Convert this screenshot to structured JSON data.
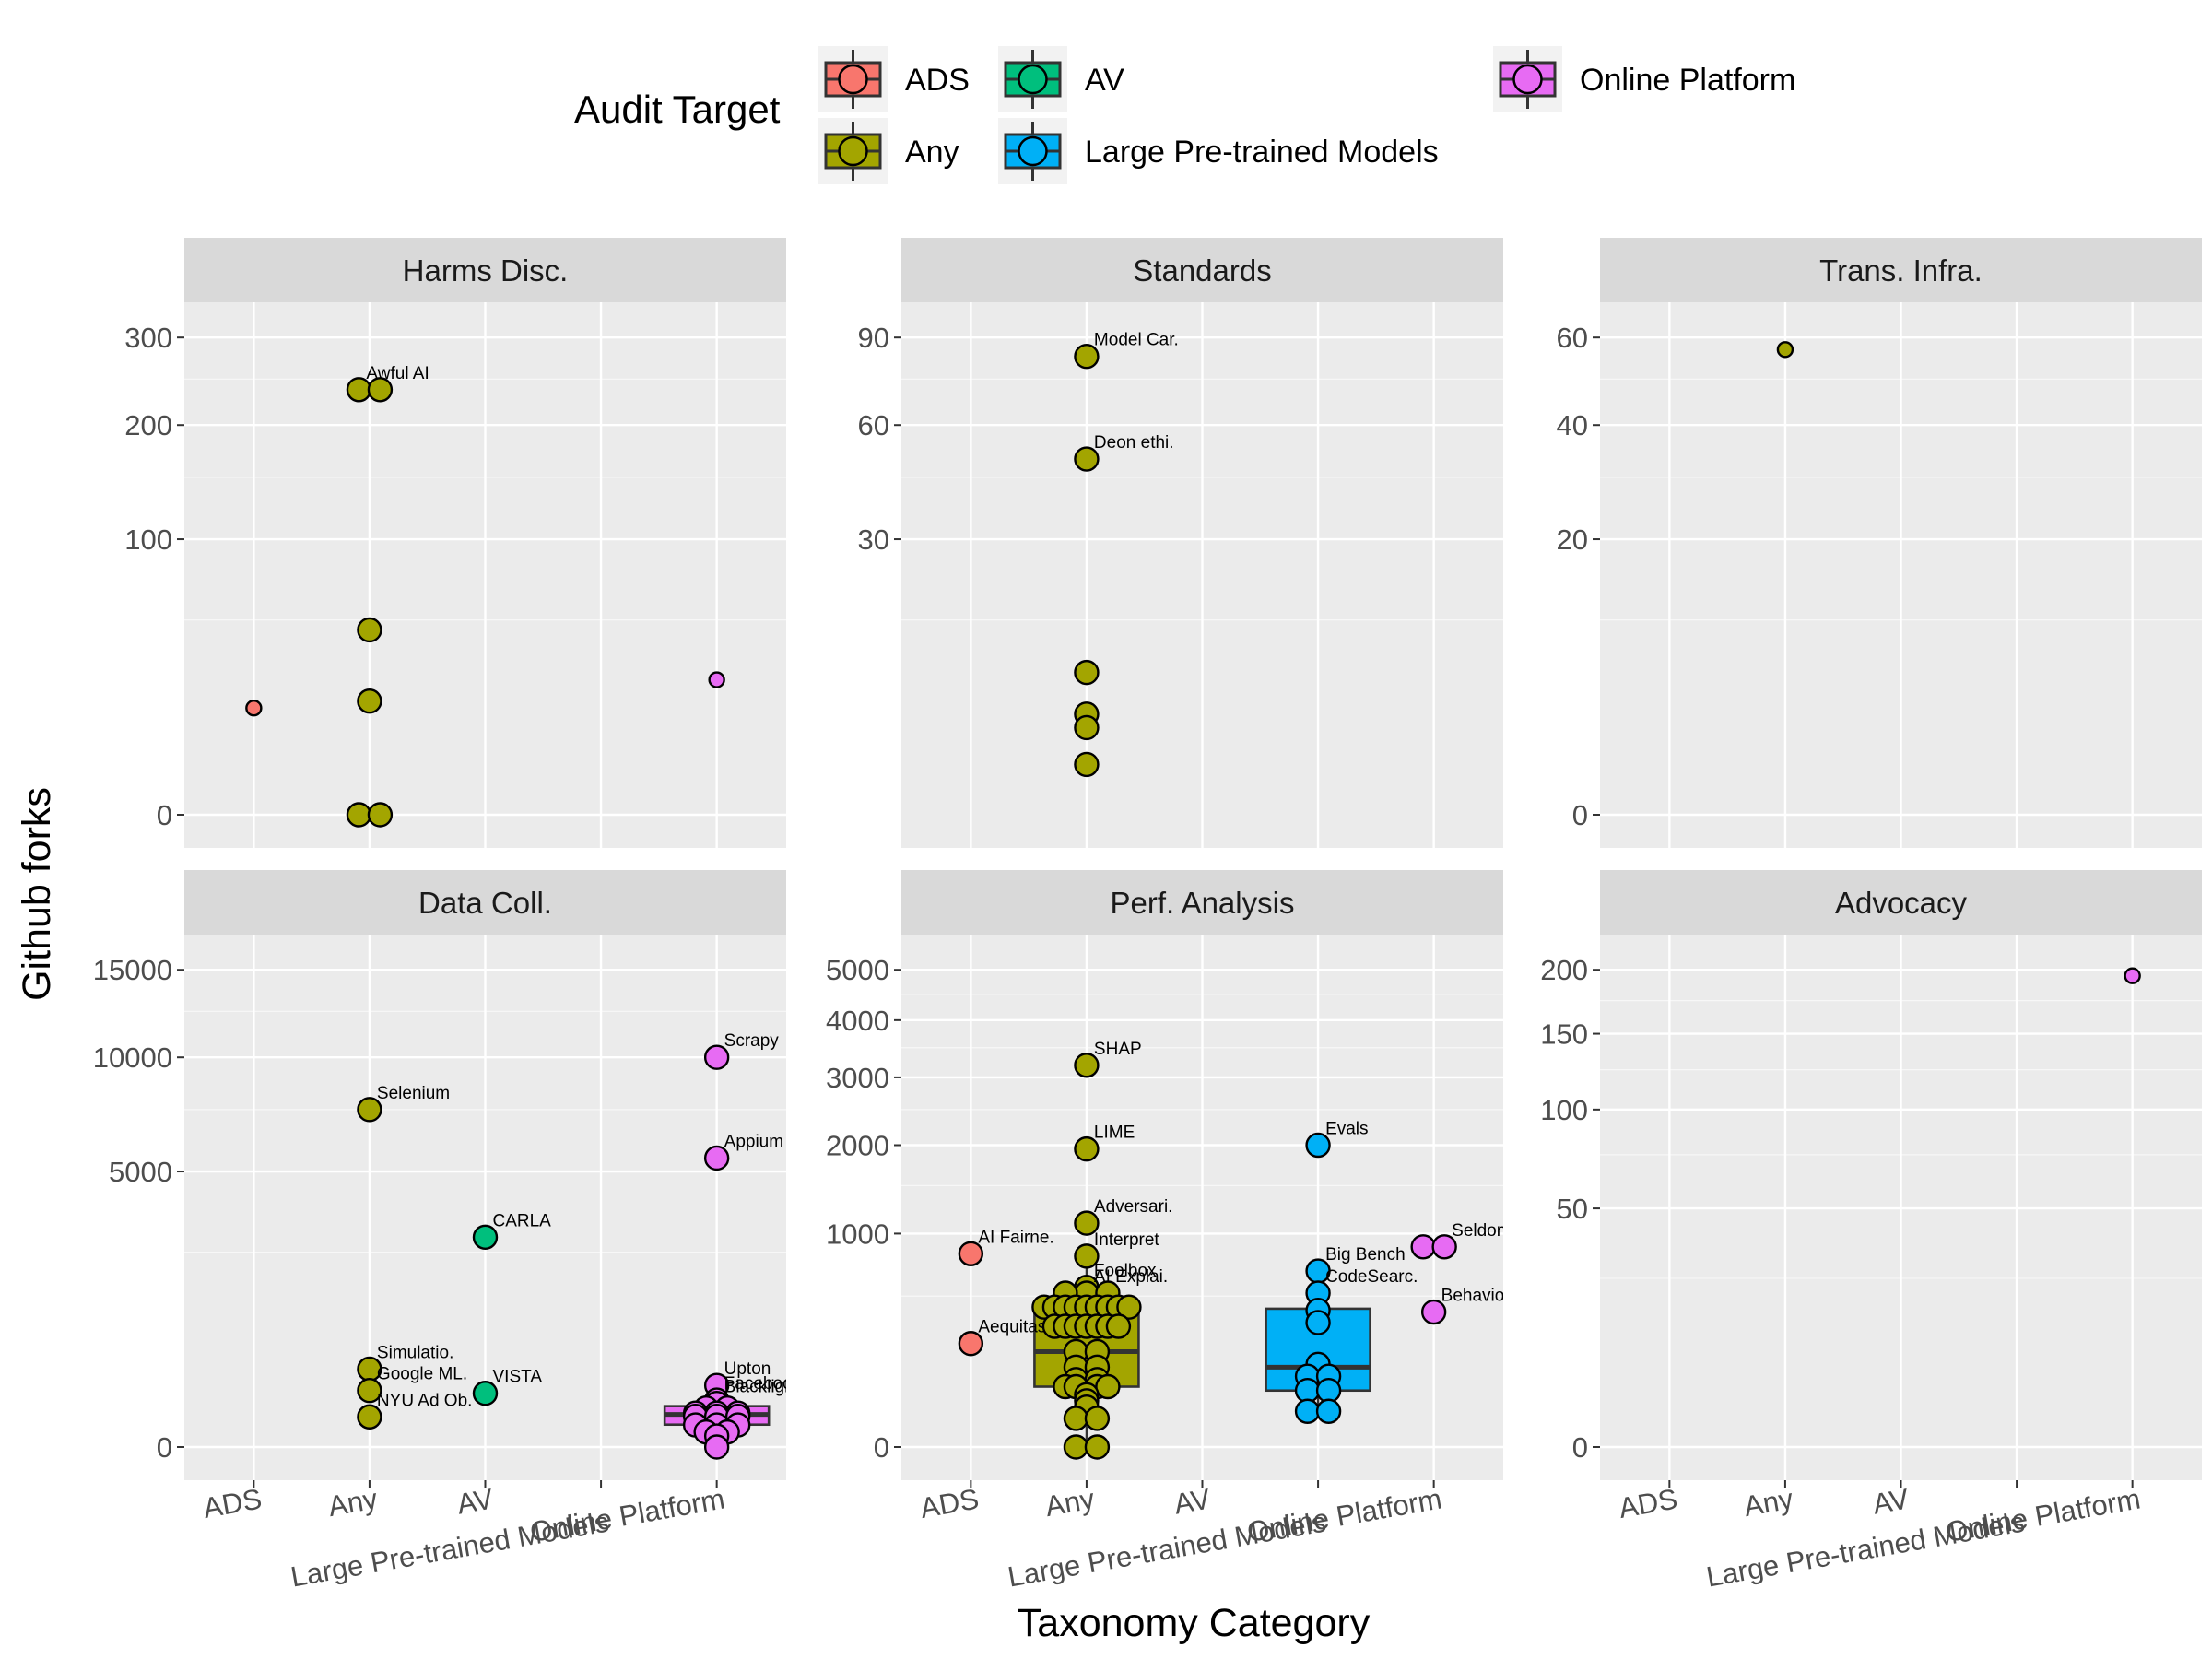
{
  "chart_data": {
    "type": "box-dotplot",
    "xlabel": "Taxonomy Category",
    "ylabel": "Github forks",
    "categories": [
      "ADS",
      "Any",
      "AV",
      "Large Pre-trained Models",
      "Online Platform"
    ],
    "legend": {
      "title": "Audit Target",
      "placement": "top",
      "entries": [
        {
          "name": "ADS",
          "color": "#F8766D"
        },
        {
          "name": "Any",
          "color": "#A3A500"
        },
        {
          "name": "AV",
          "color": "#00BF7D"
        },
        {
          "name": "Large Pre-trained Models",
          "color": "#00B0F6"
        },
        {
          "name": "Online Platform",
          "color": "#E76BF3"
        }
      ]
    },
    "panels": [
      {
        "title": "Harms Disc.",
        "y_ticks": [
          0,
          100,
          200,
          300
        ],
        "points": [
          {
            "cat": "ADS",
            "y": 15,
            "small": true
          },
          {
            "cat": "Any",
            "y": 238,
            "dx": -1,
            "label": "Awful AI"
          },
          {
            "cat": "Any",
            "y": 238,
            "dx": 1
          },
          {
            "cat": "Any",
            "y": 45
          },
          {
            "cat": "Any",
            "y": 17
          },
          {
            "cat": "Any",
            "y": 0,
            "dx": -1
          },
          {
            "cat": "Any",
            "y": 0,
            "dx": 1
          },
          {
            "cat": "Online Platform",
            "y": 24,
            "small": true
          }
        ]
      },
      {
        "title": "Standards",
        "y_ticks": [
          30,
          60,
          90
        ],
        "points": [
          {
            "cat": "Any",
            "y": 83,
            "label": "Model Car."
          },
          {
            "cat": "Any",
            "y": 50,
            "label": "Deon ethi."
          },
          {
            "cat": "Any",
            "y": 8
          },
          {
            "cat": "Any",
            "y": 4
          },
          {
            "cat": "Any",
            "y": 3
          },
          {
            "cat": "Any",
            "y": 1
          }
        ]
      },
      {
        "title": "Trans. Infra.",
        "y_ticks": [
          0,
          20,
          40,
          60
        ],
        "points": [
          {
            "cat": "Any",
            "y": 57,
            "small": true
          }
        ]
      },
      {
        "title": "Data Coll.",
        "y_ticks": [
          0,
          5000,
          10000,
          15000
        ],
        "points": [
          {
            "cat": "Any",
            "y": 7500,
            "label": "Selenium"
          },
          {
            "cat": "Any",
            "y": 400,
            "label": "Simulatio."
          },
          {
            "cat": "Any",
            "y": 210,
            "label": "Google ML."
          },
          {
            "cat": "Any",
            "y": 60,
            "label": "NYU Ad Ob."
          },
          {
            "cat": "AV",
            "y": 2900,
            "label": "CARLA"
          },
          {
            "cat": "AV",
            "y": 190,
            "label": "VISTA"
          },
          {
            "cat": "Online Platform",
            "y": 10000,
            "label": "Scrapy"
          },
          {
            "cat": "Online Platform",
            "y": 5500,
            "label": "Appium"
          },
          {
            "cat": "Online Platform",
            "y": 250,
            "label": "Upton"
          },
          {
            "cat": "Online Platform",
            "y": 145,
            "label": "Facebook"
          },
          {
            "cat": "Online Platform",
            "y": 125,
            "label": "Blacklight"
          },
          {
            "cat": "Online Platform",
            "y": 100,
            "dx": -1
          },
          {
            "cat": "Online Platform",
            "y": 100,
            "dx": 1
          },
          {
            "cat": "Online Platform",
            "y": 76,
            "dx": -2
          },
          {
            "cat": "Online Platform",
            "y": 76
          },
          {
            "cat": "Online Platform",
            "y": 76,
            "dx": 2
          },
          {
            "cat": "Online Platform",
            "y": 62,
            "dx": -2
          },
          {
            "cat": "Online Platform",
            "y": 62
          },
          {
            "cat": "Online Platform",
            "y": 62,
            "dx": 2
          },
          {
            "cat": "Online Platform",
            "y": 32,
            "dx": -2
          },
          {
            "cat": "Online Platform",
            "y": 32
          },
          {
            "cat": "Online Platform",
            "y": 32,
            "dx": 2
          },
          {
            "cat": "Online Platform",
            "y": 15,
            "dx": -1
          },
          {
            "cat": "Online Platform",
            "y": 15,
            "dx": 1
          },
          {
            "cat": "Online Platform",
            "y": 8
          },
          {
            "cat": "Online Platform",
            "y": 0
          }
        ],
        "boxes": [
          {
            "cat": "Online Platform",
            "q1": 33,
            "median": 70,
            "q3": 110,
            "whisker_low": 0,
            "whisker_high": 145
          }
        ]
      },
      {
        "title": "Perf. Analysis",
        "y_ticks": [
          0,
          1000,
          2000,
          3000,
          4000,
          5000
        ],
        "points": [
          {
            "cat": "ADS",
            "y": 820,
            "label": "AI Fairne."
          },
          {
            "cat": "ADS",
            "y": 235,
            "label": "Aequitas"
          },
          {
            "cat": "Any",
            "y": 3200,
            "label": "SHAP"
          },
          {
            "cat": "Any",
            "y": 1950,
            "label": "LIME"
          },
          {
            "cat": "Any",
            "y": 1100,
            "label": "Adversari."
          },
          {
            "cat": "Any",
            "y": 800,
            "label": "Interpret"
          },
          {
            "cat": "Any",
            "y": 560,
            "label": "Foolbox"
          },
          {
            "cat": "Any",
            "y": 520,
            "label": "AI Explai."
          },
          {
            "cat": "Any",
            "y": 520,
            "dx": -2
          },
          {
            "cat": "Any",
            "y": 520,
            "dx": 2
          },
          {
            "cat": "Any",
            "y": 430,
            "dx": -4
          },
          {
            "cat": "Any",
            "y": 430,
            "dx": -3
          },
          {
            "cat": "Any",
            "y": 430,
            "dx": -2
          },
          {
            "cat": "Any",
            "y": 430,
            "dx": -1
          },
          {
            "cat": "Any",
            "y": 430
          },
          {
            "cat": "Any",
            "y": 430,
            "dx": 1
          },
          {
            "cat": "Any",
            "y": 430,
            "dx": 2
          },
          {
            "cat": "Any",
            "y": 430,
            "dx": 3
          },
          {
            "cat": "Any",
            "y": 430,
            "dx": 4
          },
          {
            "cat": "Any",
            "y": 320,
            "dx": -3
          },
          {
            "cat": "Any",
            "y": 320,
            "dx": -2
          },
          {
            "cat": "Any",
            "y": 320,
            "dx": -1
          },
          {
            "cat": "Any",
            "y": 320
          },
          {
            "cat": "Any",
            "y": 320,
            "dx": 1
          },
          {
            "cat": "Any",
            "y": 320,
            "dx": 2
          },
          {
            "cat": "Any",
            "y": 320,
            "dx": 3
          },
          {
            "cat": "Any",
            "y": 200,
            "dx": -1
          },
          {
            "cat": "Any",
            "y": 200,
            "dx": 1
          },
          {
            "cat": "Any",
            "y": 140,
            "dx": -1
          },
          {
            "cat": "Any",
            "y": 140,
            "dx": 1
          },
          {
            "cat": "Any",
            "y": 100,
            "dx": -1
          },
          {
            "cat": "Any",
            "y": 100,
            "dx": 1
          },
          {
            "cat": "Any",
            "y": 80,
            "dx": -2
          },
          {
            "cat": "Any",
            "y": 80,
            "dx": -1
          },
          {
            "cat": "Any",
            "y": 80,
            "dx": 1
          },
          {
            "cat": "Any",
            "y": 80,
            "dx": 2
          },
          {
            "cat": "Any",
            "y": 60
          },
          {
            "cat": "Any",
            "y": 47
          },
          {
            "cat": "Any",
            "y": 35
          },
          {
            "cat": "Any",
            "y": 18,
            "dx": -1
          },
          {
            "cat": "Any",
            "y": 18,
            "dx": 1
          },
          {
            "cat": "Any",
            "y": 0,
            "dx": -1
          },
          {
            "cat": "Any",
            "y": 0,
            "dx": 1
          },
          {
            "cat": "Large Pre-trained Models",
            "y": 2000,
            "label": "Evals"
          },
          {
            "cat": "Large Pre-trained Models",
            "y": 680,
            "label": "Big Bench"
          },
          {
            "cat": "Large Pre-trained Models",
            "y": 520,
            "label": "CodeSearc."
          },
          {
            "cat": "Large Pre-trained Models",
            "y": 410
          },
          {
            "cat": "Large Pre-trained Models",
            "y": 340
          },
          {
            "cat": "Large Pre-trained Models",
            "y": 150
          },
          {
            "cat": "Large Pre-trained Models",
            "y": 110,
            "dx": -1
          },
          {
            "cat": "Large Pre-trained Models",
            "y": 110,
            "dx": 1
          },
          {
            "cat": "Large Pre-trained Models",
            "y": 70,
            "dx": -1
          },
          {
            "cat": "Large Pre-trained Models",
            "y": 70,
            "dx": 1
          },
          {
            "cat": "Large Pre-trained Models",
            "y": 28,
            "dx": -1
          },
          {
            "cat": "Large Pre-trained Models",
            "y": 28,
            "dx": 1
          },
          {
            "cat": "Online Platform",
            "y": 880,
            "dx": -1
          },
          {
            "cat": "Online Platform",
            "y": 880,
            "dx": 1,
            "label": "Seldon"
          },
          {
            "cat": "Online Platform",
            "y": 400,
            "label": "Behavior"
          }
        ],
        "boxes": [
          {
            "cat": "Any",
            "q1": 80,
            "median": 200,
            "q3": 430,
            "whisker_low": 0,
            "whisker_high": 800
          },
          {
            "cat": "Large Pre-trained Models",
            "q1": 70,
            "median": 140,
            "q3": 420,
            "whisker_low": 28,
            "whisker_high": 680
          }
        ]
      },
      {
        "title": "Advocacy",
        "y_ticks": [
          0,
          50,
          100,
          150,
          200
        ],
        "points": [
          {
            "cat": "Online Platform",
            "y": 195,
            "small": true
          }
        ]
      }
    ]
  }
}
